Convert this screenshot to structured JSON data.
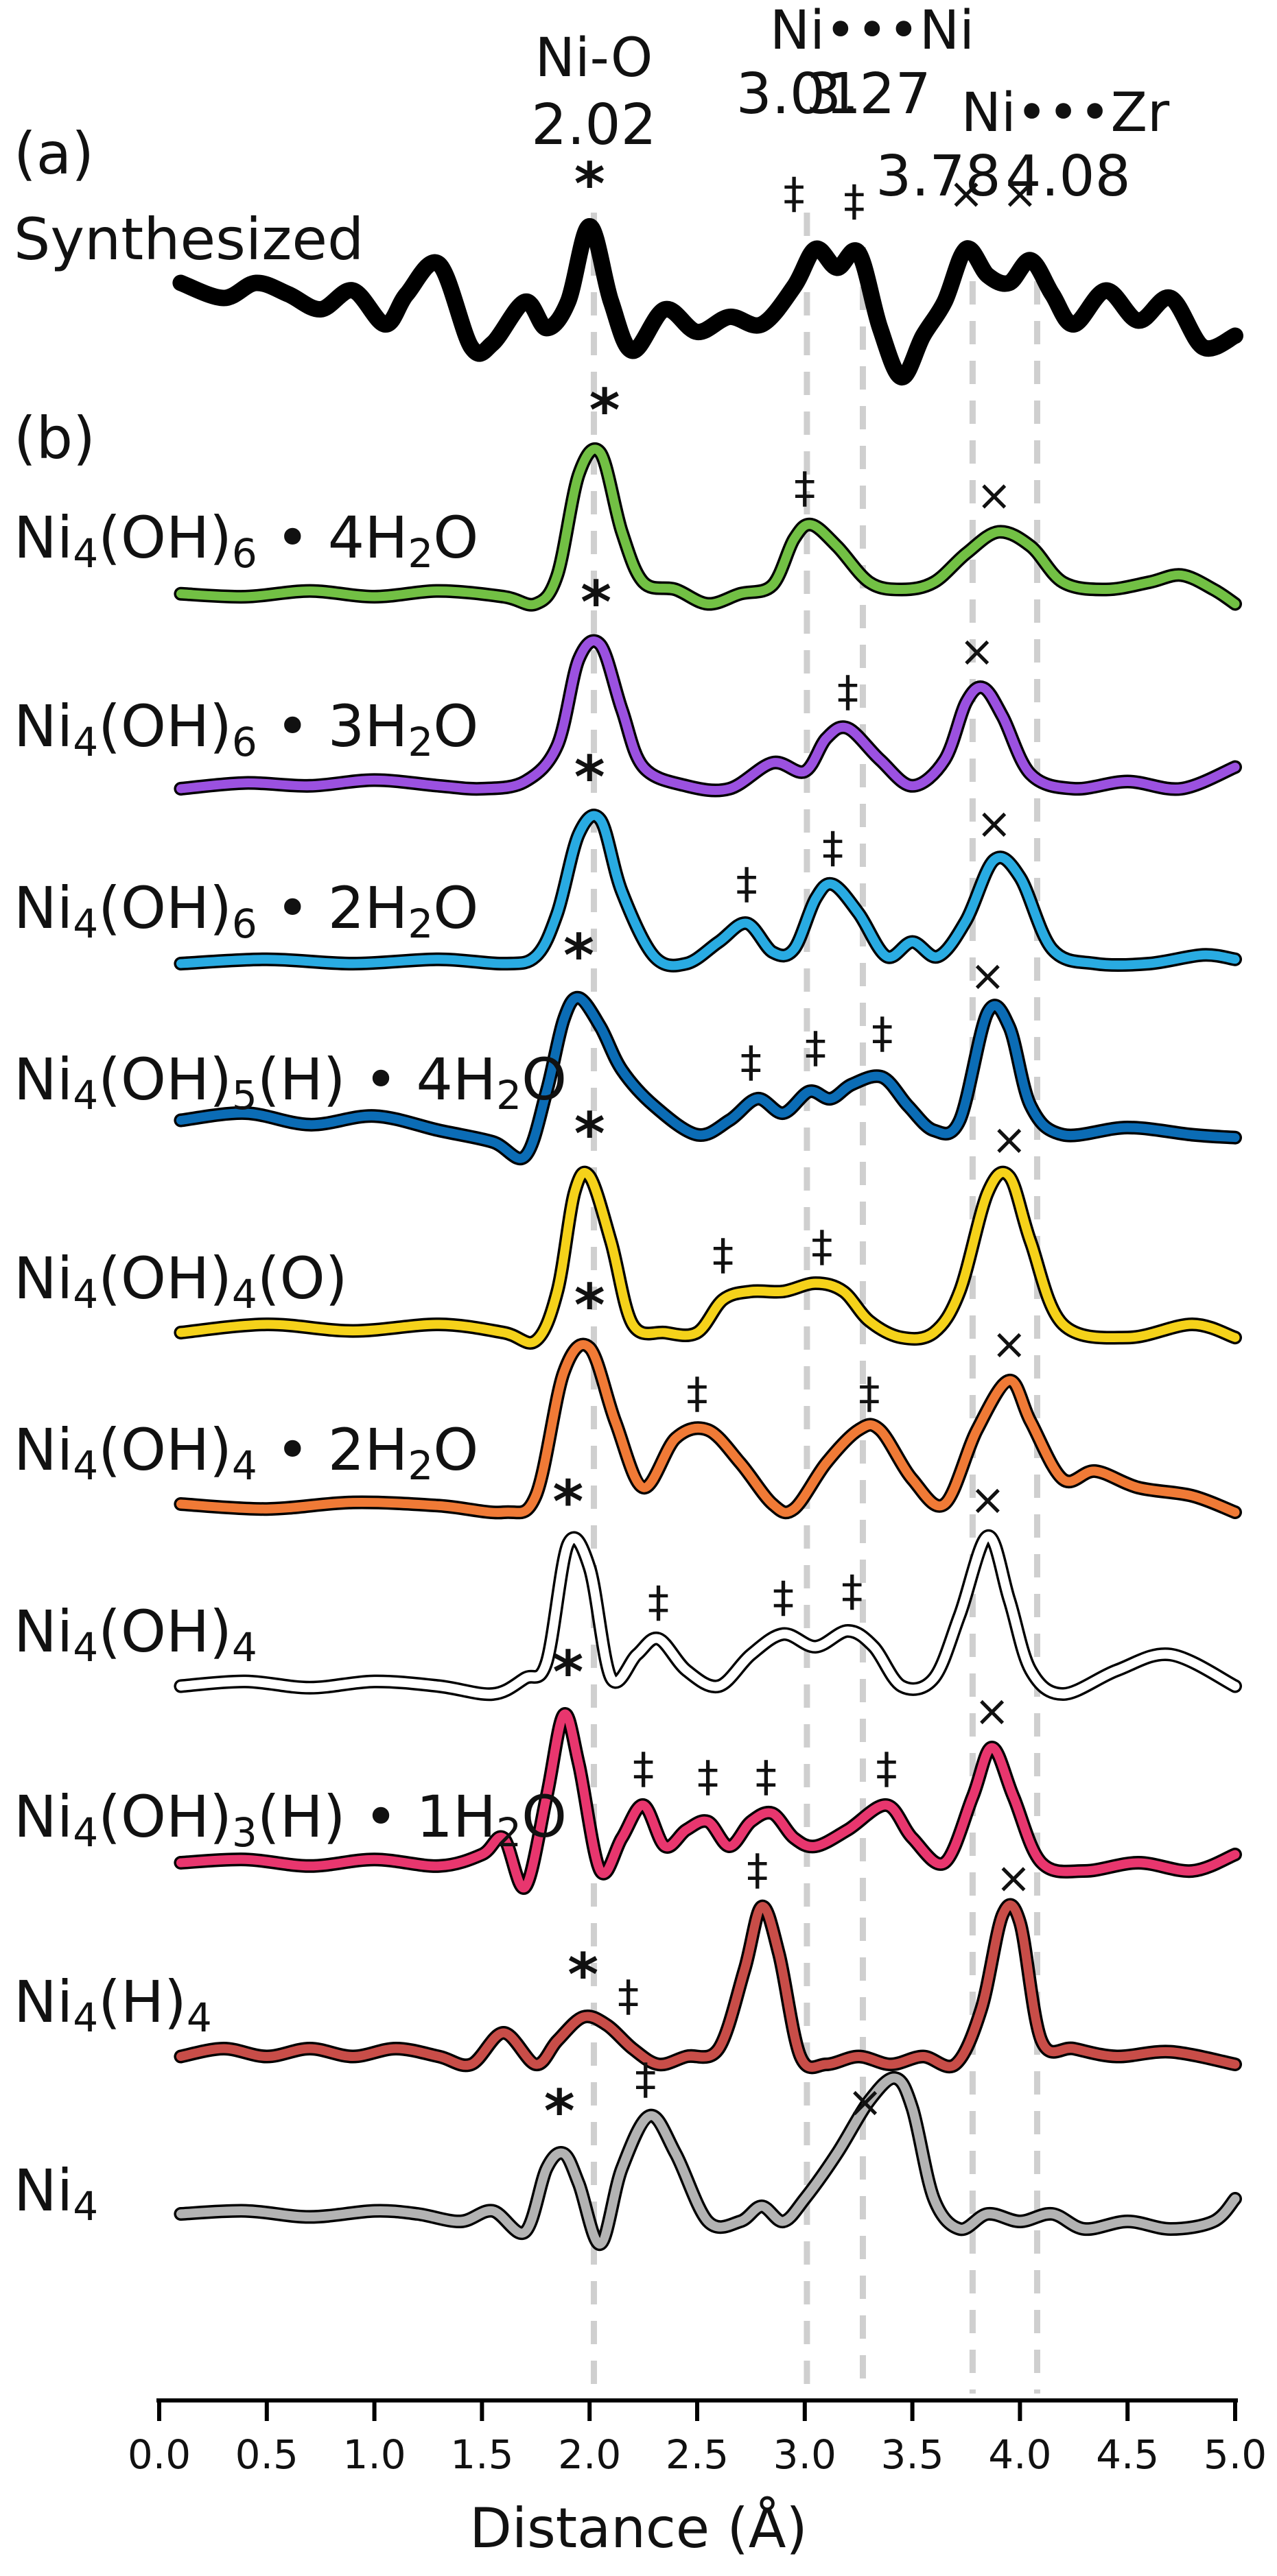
{
  "chart_data": {
    "type": "line",
    "xlabel": "Distance (Å)",
    "xlim": [
      0.0,
      5.0
    ],
    "x_tick_labels": [
      "0.0",
      "0.5",
      "1.0",
      "1.5",
      "2.0",
      "2.5",
      "3.0",
      "3.5",
      "4.0",
      "4.5",
      "5.0"
    ],
    "grid": false,
    "panels": [
      {
        "label": "(a)"
      },
      {
        "label": "(b)"
      }
    ],
    "reference_lines": [
      {
        "x": 2.02,
        "label": "Ni-O",
        "value": "2.02"
      },
      {
        "x": 3.01,
        "label": "Ni•••Ni",
        "value": "3.01"
      },
      {
        "x": 3.27,
        "label": "",
        "value": "3.27"
      },
      {
        "x": 3.78,
        "label": "Ni•••Zr",
        "value": "3.78"
      },
      {
        "x": 4.08,
        "label": "",
        "value": "4.08"
      }
    ],
    "series": [
      {
        "name": "Synthesized",
        "panel": "a",
        "color": "#000000",
        "style": "thick",
        "x": [
          0.1,
          0.3,
          0.45,
          0.6,
          0.75,
          0.9,
          1.05,
          1.15,
          1.3,
          1.45,
          1.55,
          1.7,
          1.8,
          1.9,
          2.0,
          2.1,
          2.2,
          2.35,
          2.5,
          2.65,
          2.8,
          2.95,
          3.05,
          3.15,
          3.25,
          3.35,
          3.45,
          3.55,
          3.65,
          3.75,
          3.85,
          3.95,
          4.05,
          4.15,
          4.25,
          4.4,
          4.55,
          4.7,
          4.85,
          5.0
        ],
        "y": [
          0.25,
          0.05,
          0.25,
          0.1,
          -0.1,
          0.15,
          -0.3,
          0.1,
          0.5,
          -0.6,
          -0.55,
          0.0,
          -0.35,
          0.0,
          1.0,
          0.0,
          -0.65,
          -0.1,
          -0.4,
          -0.2,
          -0.3,
          0.2,
          0.7,
          0.45,
          0.65,
          -0.35,
          -1.0,
          -0.45,
          0.0,
          0.7,
          0.35,
          0.25,
          0.55,
          0.1,
          -0.3,
          0.15,
          -0.25,
          0.05,
          -0.6,
          -0.45
        ],
        "markers": [
          {
            "symbol": "*",
            "x": 2.0,
            "y": 1.0
          },
          {
            "symbol": "‡",
            "x": 2.95,
            "y": 0.95
          },
          {
            "symbol": "‡",
            "x": 3.23,
            "y": 0.85
          },
          {
            "symbol": "×",
            "x": 3.75,
            "y": 0.95
          },
          {
            "symbol": "×",
            "x": 4.0,
            "y": 0.95
          }
        ]
      },
      {
        "name": "Ni4(OH)6 • 4H2O",
        "panel": "b",
        "color": "#72c044",
        "label_parts": [
          "Ni",
          "4",
          "(OH)",
          "6",
          " • 4H",
          "2",
          "O"
        ],
        "x": [
          0.1,
          0.4,
          0.7,
          1.0,
          1.3,
          1.6,
          1.75,
          1.85,
          1.95,
          2.05,
          2.15,
          2.25,
          2.4,
          2.55,
          2.7,
          2.85,
          2.95,
          3.03,
          3.15,
          3.3,
          3.45,
          3.6,
          3.75,
          3.9,
          4.05,
          4.2,
          4.4,
          4.6,
          4.75,
          4.9,
          5.0
        ],
        "y": [
          0.02,
          0.0,
          0.04,
          0.0,
          0.04,
          0.0,
          -0.05,
          0.15,
          0.85,
          1.0,
          0.45,
          0.1,
          0.05,
          -0.05,
          0.02,
          0.08,
          0.4,
          0.5,
          0.35,
          0.1,
          0.05,
          0.1,
          0.3,
          0.45,
          0.35,
          0.1,
          0.05,
          0.1,
          0.15,
          0.05,
          -0.05
        ],
        "markers": [
          {
            "symbol": "*",
            "x": 2.07,
            "y": 1.0
          },
          {
            "symbol": "‡",
            "x": 3.0,
            "y": 0.5
          },
          {
            "symbol": "×",
            "x": 3.88,
            "y": 0.45
          }
        ]
      },
      {
        "name": "Ni4(OH)6 • 3H2O",
        "panel": "b",
        "color": "#9b51e0",
        "label_parts": [
          "Ni",
          "4",
          "(OH)",
          "6",
          " • 3H",
          "2",
          "O"
        ],
        "x": [
          0.1,
          0.4,
          0.7,
          1.0,
          1.3,
          1.5,
          1.7,
          1.85,
          1.95,
          2.05,
          2.15,
          2.25,
          2.45,
          2.65,
          2.85,
          3.0,
          3.1,
          3.2,
          3.35,
          3.5,
          3.65,
          3.75,
          3.83,
          3.92,
          4.05,
          4.25,
          4.5,
          4.75,
          5.0
        ],
        "y": [
          0.0,
          0.04,
          0.02,
          0.06,
          0.02,
          0.0,
          0.05,
          0.3,
          0.9,
          1.0,
          0.55,
          0.15,
          0.02,
          0.0,
          0.18,
          0.12,
          0.35,
          0.42,
          0.2,
          0.02,
          0.2,
          0.6,
          0.7,
          0.5,
          0.1,
          0.0,
          0.05,
          0.0,
          0.15
        ],
        "markers": [
          {
            "symbol": "*",
            "x": 2.03,
            "y": 1.0
          },
          {
            "symbol": "‡",
            "x": 3.2,
            "y": 0.42
          },
          {
            "symbol": "×",
            "x": 3.8,
            "y": 0.7
          }
        ]
      },
      {
        "name": "Ni4(OH)6 • 2H2O",
        "panel": "b",
        "color": "#29abe2",
        "label_parts": [
          "Ni",
          "4",
          "(OH)",
          "6",
          " • 2H",
          "2",
          "O"
        ],
        "x": [
          0.1,
          0.5,
          0.9,
          1.3,
          1.6,
          1.75,
          1.85,
          1.95,
          2.05,
          2.15,
          2.3,
          2.45,
          2.6,
          2.73,
          2.85,
          2.95,
          3.05,
          3.13,
          3.25,
          3.38,
          3.5,
          3.62,
          3.75,
          3.88,
          4.0,
          4.15,
          4.35,
          4.6,
          4.85,
          5.0
        ],
        "y": [
          0.0,
          0.03,
          0.0,
          0.03,
          0.0,
          0.05,
          0.35,
          0.9,
          1.0,
          0.5,
          0.05,
          0.0,
          0.15,
          0.28,
          0.08,
          0.1,
          0.45,
          0.55,
          0.35,
          0.05,
          0.15,
          0.05,
          0.3,
          0.72,
          0.6,
          0.1,
          0.0,
          0.0,
          0.06,
          0.03
        ],
        "markers": [
          {
            "symbol": "*",
            "x": 2.0,
            "y": 1.0
          },
          {
            "symbol": "‡",
            "x": 2.73,
            "y": 0.3
          },
          {
            "symbol": "‡",
            "x": 3.13,
            "y": 0.55
          },
          {
            "symbol": "×",
            "x": 3.88,
            "y": 0.72
          }
        ]
      },
      {
        "name": "Ni4(OH)5(H) • 4H2O",
        "panel": "b",
        "color": "#0b6cb5",
        "label_parts": [
          "Ni",
          "4",
          "(OH)",
          "5",
          "(H) • 4H",
          "2",
          "O"
        ],
        "x": [
          0.1,
          0.4,
          0.7,
          1.0,
          1.3,
          1.55,
          1.7,
          1.8,
          1.88,
          1.95,
          2.05,
          2.15,
          2.3,
          2.5,
          2.65,
          2.78,
          2.9,
          3.02,
          3.12,
          3.22,
          3.36,
          3.48,
          3.6,
          3.72,
          3.85,
          3.95,
          4.05,
          4.2,
          4.5,
          4.8,
          5.0
        ],
        "y": [
          0.15,
          0.2,
          0.12,
          0.18,
          0.08,
          0.0,
          -0.1,
          0.35,
          0.85,
          1.0,
          0.8,
          0.5,
          0.25,
          0.05,
          0.15,
          0.3,
          0.2,
          0.35,
          0.3,
          0.4,
          0.45,
          0.25,
          0.08,
          0.15,
          0.9,
          0.8,
          0.25,
          0.05,
          0.1,
          0.05,
          0.03
        ],
        "markers": [
          {
            "symbol": "*",
            "x": 1.95,
            "y": 1.0
          },
          {
            "symbol": "‡",
            "x": 2.75,
            "y": 0.3
          },
          {
            "symbol": "‡",
            "x": 3.05,
            "y": 0.4
          },
          {
            "symbol": "‡",
            "x": 3.36,
            "y": 0.5
          },
          {
            "symbol": "×",
            "x": 3.85,
            "y": 0.9
          }
        ]
      },
      {
        "name": "Ni4(OH)4(O)",
        "panel": "b",
        "color": "#f5d21a",
        "label_parts": [
          "Ni",
          "4",
          "(OH)",
          "4",
          "(O)"
        ],
        "x": [
          0.1,
          0.5,
          0.9,
          1.3,
          1.6,
          1.75,
          1.85,
          1.93,
          2.0,
          2.1,
          2.2,
          2.35,
          2.5,
          2.62,
          2.75,
          2.9,
          3.05,
          3.18,
          3.3,
          3.45,
          3.6,
          3.72,
          3.85,
          3.95,
          4.05,
          4.2,
          4.5,
          4.8,
          5.0
        ],
        "y": [
          0.05,
          0.1,
          0.06,
          0.1,
          0.05,
          0.0,
          0.3,
          0.9,
          1.0,
          0.6,
          0.1,
          0.05,
          0.05,
          0.25,
          0.3,
          0.3,
          0.35,
          0.3,
          0.12,
          0.02,
          0.05,
          0.3,
          0.9,
          1.0,
          0.6,
          0.1,
          0.02,
          0.1,
          0.02
        ],
        "markers": [
          {
            "symbol": "*",
            "x": 2.0,
            "y": 1.0
          },
          {
            "symbol": "‡",
            "x": 2.62,
            "y": 0.3
          },
          {
            "symbol": "‡",
            "x": 3.08,
            "y": 0.35
          },
          {
            "symbol": "×",
            "x": 3.95,
            "y": 1.0
          }
        ]
      },
      {
        "name": "Ni4(OH)4 • 2H2O",
        "panel": "b",
        "color": "#f07a36",
        "label_parts": [
          "Ni",
          "4",
          "(OH)",
          "4",
          " • 2H",
          "2",
          "O"
        ],
        "x": [
          0.1,
          0.5,
          0.9,
          1.3,
          1.6,
          1.75,
          1.88,
          2.0,
          2.12,
          2.25,
          2.4,
          2.55,
          2.7,
          2.85,
          2.95,
          3.1,
          3.25,
          3.35,
          3.5,
          3.65,
          3.8,
          3.95,
          4.05,
          4.2,
          4.35,
          4.55,
          4.8,
          5.0
        ],
        "y": [
          0.05,
          0.02,
          0.06,
          0.04,
          0.0,
          0.1,
          0.85,
          1.0,
          0.55,
          0.15,
          0.45,
          0.5,
          0.3,
          0.05,
          0.02,
          0.3,
          0.5,
          0.5,
          0.2,
          0.05,
          0.5,
          0.8,
          0.55,
          0.2,
          0.25,
          0.15,
          0.1,
          0.0
        ],
        "markers": [
          {
            "symbol": "*",
            "x": 2.0,
            "y": 1.0
          },
          {
            "symbol": "‡",
            "x": 2.5,
            "y": 0.5
          },
          {
            "symbol": "‡",
            "x": 3.3,
            "y": 0.5
          },
          {
            "symbol": "×",
            "x": 3.95,
            "y": 0.8
          }
        ]
      },
      {
        "name": "Ni4(OH)4",
        "panel": "b",
        "color": "#ffffff",
        "label_parts": [
          "Ni",
          "4",
          "(OH)",
          "4"
        ],
        "x": [
          0.1,
          0.4,
          0.7,
          1.0,
          1.3,
          1.55,
          1.7,
          1.8,
          1.9,
          2.0,
          2.1,
          2.22,
          2.32,
          2.45,
          2.6,
          2.75,
          2.9,
          3.05,
          3.2,
          3.32,
          3.45,
          3.6,
          3.72,
          3.85,
          3.95,
          4.05,
          4.2,
          4.45,
          4.7,
          5.0
        ],
        "y": [
          0.05,
          0.08,
          0.04,
          0.08,
          0.05,
          0.0,
          0.1,
          0.2,
          0.95,
          0.8,
          0.1,
          0.25,
          0.35,
          0.15,
          0.05,
          0.25,
          0.38,
          0.3,
          0.4,
          0.3,
          0.05,
          0.1,
          0.5,
          1.0,
          0.6,
          0.15,
          0.0,
          0.15,
          0.25,
          0.05
        ],
        "markers": [
          {
            "symbol": "*",
            "x": 1.9,
            "y": 0.95
          },
          {
            "symbol": "‡",
            "x": 2.32,
            "y": 0.35
          },
          {
            "symbol": "‡",
            "x": 2.9,
            "y": 0.38
          },
          {
            "symbol": "‡",
            "x": 3.22,
            "y": 0.42
          },
          {
            "symbol": "×",
            "x": 3.85,
            "y": 1.0
          }
        ]
      },
      {
        "name": "Ni4(OH)3(H) • 1H2O",
        "panel": "b",
        "color": "#e8366e",
        "label_parts": [
          "Ni",
          "4",
          "(OH)",
          "3",
          "(H) • 1H",
          "2",
          "O"
        ],
        "x": [
          0.1,
          0.4,
          0.7,
          1.0,
          1.3,
          1.5,
          1.6,
          1.7,
          1.8,
          1.88,
          1.95,
          2.05,
          2.15,
          2.25,
          2.35,
          2.45,
          2.55,
          2.65,
          2.75,
          2.85,
          2.95,
          3.05,
          3.2,
          3.38,
          3.5,
          3.65,
          3.78,
          3.87,
          3.97,
          4.1,
          4.3,
          4.55,
          4.8,
          5.0
        ],
        "y": [
          0.1,
          0.12,
          0.08,
          0.12,
          0.08,
          0.15,
          0.25,
          -0.05,
          0.5,
          1.0,
          0.7,
          0.05,
          0.25,
          0.45,
          0.2,
          0.3,
          0.35,
          0.2,
          0.35,
          0.4,
          0.25,
          0.2,
          0.3,
          0.45,
          0.25,
          0.1,
          0.5,
          0.8,
          0.5,
          0.1,
          0.05,
          0.1,
          0.05,
          0.15
        ],
        "markers": [
          {
            "symbol": "*",
            "x": 1.9,
            "y": 1.0
          },
          {
            "symbol": "‡",
            "x": 2.25,
            "y": 0.45
          },
          {
            "symbol": "‡",
            "x": 2.55,
            "y": 0.4
          },
          {
            "symbol": "‡",
            "x": 2.82,
            "y": 0.4
          },
          {
            "symbol": "‡",
            "x": 3.38,
            "y": 0.45
          },
          {
            "symbol": "×",
            "x": 3.87,
            "y": 0.8
          }
        ]
      },
      {
        "name": "Ni4(H)4",
        "panel": "b",
        "color": "#c84d48",
        "label_parts": [
          "Ni",
          "4",
          "(H)",
          "4"
        ],
        "x": [
          0.1,
          0.3,
          0.5,
          0.7,
          0.9,
          1.1,
          1.3,
          1.45,
          1.6,
          1.75,
          1.85,
          1.97,
          2.08,
          2.2,
          2.32,
          2.45,
          2.6,
          2.72,
          2.8,
          2.88,
          2.98,
          3.1,
          3.25,
          3.4,
          3.55,
          3.7,
          3.82,
          3.92,
          4.0,
          4.1,
          4.25,
          4.45,
          4.7,
          5.0
        ],
        "y": [
          0.05,
          0.1,
          0.05,
          0.1,
          0.05,
          0.1,
          0.05,
          0.0,
          0.2,
          0.0,
          0.15,
          0.3,
          0.25,
          0.1,
          0.0,
          0.05,
          0.1,
          0.6,
          1.0,
          0.7,
          0.05,
          0.0,
          0.05,
          0.0,
          0.05,
          0.0,
          0.35,
          0.95,
          0.9,
          0.15,
          0.1,
          0.05,
          0.08,
          0.0
        ],
        "markers": [
          {
            "symbol": "*",
            "x": 1.97,
            "y": 0.3
          },
          {
            "symbol": "‡",
            "x": 2.18,
            "y": 0.2
          },
          {
            "symbol": "‡",
            "x": 2.78,
            "y": 1.0
          },
          {
            "symbol": "×",
            "x": 3.97,
            "y": 0.95
          }
        ]
      },
      {
        "name": "Ni4",
        "panel": "b",
        "color": "#b3b3b3",
        "label_parts": [
          "Ni",
          "4"
        ],
        "x": [
          0.1,
          0.4,
          0.7,
          1.0,
          1.2,
          1.4,
          1.55,
          1.7,
          1.8,
          1.88,
          1.95,
          2.05,
          2.15,
          2.28,
          2.4,
          2.55,
          2.7,
          2.8,
          2.9,
          3.0,
          3.15,
          3.3,
          3.42,
          3.5,
          3.6,
          3.72,
          3.85,
          4.0,
          4.15,
          4.3,
          4.5,
          4.7,
          4.9,
          5.0
        ],
        "y": [
          0.1,
          0.12,
          0.08,
          0.12,
          0.1,
          0.05,
          0.12,
          -0.02,
          0.4,
          0.5,
          0.3,
          -0.1,
          0.4,
          0.75,
          0.5,
          0.05,
          0.05,
          0.15,
          0.05,
          0.2,
          0.5,
          0.85,
          1.0,
          0.8,
          0.2,
          0.0,
          0.1,
          0.05,
          0.1,
          0.0,
          0.05,
          0.0,
          0.05,
          0.2
        ],
        "markers": [
          {
            "symbol": "*",
            "x": 1.86,
            "y": 0.5
          },
          {
            "symbol": "‡",
            "x": 2.26,
            "y": 0.75
          },
          {
            "symbol": "×",
            "x": 3.28,
            "y": 0.6
          }
        ]
      }
    ]
  }
}
